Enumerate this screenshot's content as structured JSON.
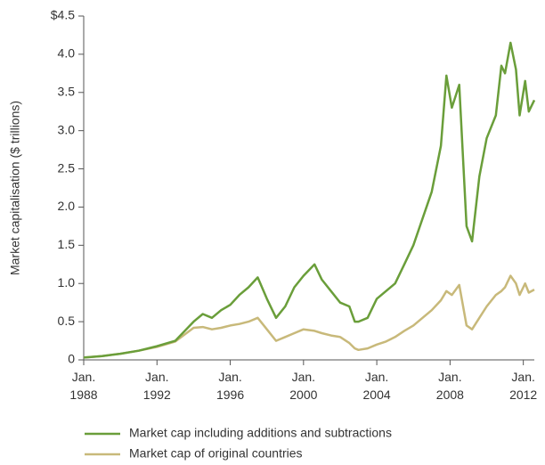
{
  "chart_data": {
    "type": "line",
    "ylabel": "Market capitalisation ($ trillions)",
    "x": [
      1988,
      1989,
      1990,
      1991,
      1992,
      1993,
      1994,
      1994.5,
      1995,
      1995.5,
      1996,
      1996.5,
      1997,
      1997.5,
      1998,
      1998.5,
      1999,
      1999.5,
      2000,
      2000.6,
      2001,
      2001.5,
      2002,
      2002.5,
      2002.8,
      2003,
      2003.5,
      2004,
      2004.5,
      2005,
      2005.5,
      2006,
      2006.5,
      2007,
      2007.5,
      2007.8,
      2008.1,
      2008.5,
      2008.9,
      2009.2,
      2009.6,
      2010,
      2010.5,
      2010.8,
      2011,
      2011.3,
      2011.6,
      2011.8,
      2012.1,
      2012.3,
      2012.6
    ],
    "series": [
      {
        "name": "Market cap including additions and subtractions",
        "color": "#6a9e3a",
        "values": [
          0.03,
          0.05,
          0.08,
          0.12,
          0.18,
          0.25,
          0.5,
          0.6,
          0.55,
          0.65,
          0.72,
          0.85,
          0.95,
          1.08,
          0.8,
          0.55,
          0.7,
          0.95,
          1.1,
          1.25,
          1.05,
          0.9,
          0.75,
          0.7,
          0.5,
          0.5,
          0.55,
          0.8,
          0.9,
          1.0,
          1.25,
          1.5,
          1.85,
          2.2,
          2.8,
          3.72,
          3.3,
          3.6,
          1.75,
          1.55,
          2.4,
          2.9,
          3.2,
          3.85,
          3.75,
          4.15,
          3.8,
          3.2,
          3.65,
          3.25,
          3.4
        ]
      },
      {
        "name": "Market cap of original countries",
        "color": "#c8b97a",
        "values": [
          0.03,
          0.05,
          0.08,
          0.12,
          0.17,
          0.24,
          0.42,
          0.43,
          0.4,
          0.42,
          0.45,
          0.47,
          0.5,
          0.55,
          0.4,
          0.25,
          0.3,
          0.35,
          0.4,
          0.38,
          0.35,
          0.32,
          0.3,
          0.22,
          0.15,
          0.13,
          0.15,
          0.2,
          0.24,
          0.3,
          0.38,
          0.45,
          0.55,
          0.65,
          0.78,
          0.9,
          0.85,
          0.98,
          0.45,
          0.4,
          0.55,
          0.7,
          0.85,
          0.9,
          0.95,
          1.1,
          1.0,
          0.85,
          1.0,
          0.88,
          0.92
        ]
      }
    ],
    "xlim": [
      1988,
      2012.6
    ],
    "xticks": [
      {
        "value": 1988,
        "label": "Jan. 1988"
      },
      {
        "value": 1992,
        "label": "Jan. 1992"
      },
      {
        "value": 1996,
        "label": "Jan. 1996"
      },
      {
        "value": 2000,
        "label": "Jan. 2000"
      },
      {
        "value": 2004,
        "label": "Jan. 2004"
      },
      {
        "value": 2008,
        "label": "Jan. 2008"
      },
      {
        "value": 2012,
        "label": "Jan. 2012"
      }
    ],
    "ylim": [
      0,
      4.5
    ],
    "yticks": [
      0,
      0.5,
      {
        "value": 1,
        "label": "1.0"
      },
      1.5,
      {
        "value": 2,
        "label": "2.0"
      },
      2.5,
      {
        "value": 3,
        "label": "3.0"
      },
      3.5,
      {
        "value": 4,
        "label": "4.0"
      },
      {
        "value": 4.5,
        "label": "$4.5"
      }
    ],
    "grid": false,
    "legend": "bottom"
  }
}
